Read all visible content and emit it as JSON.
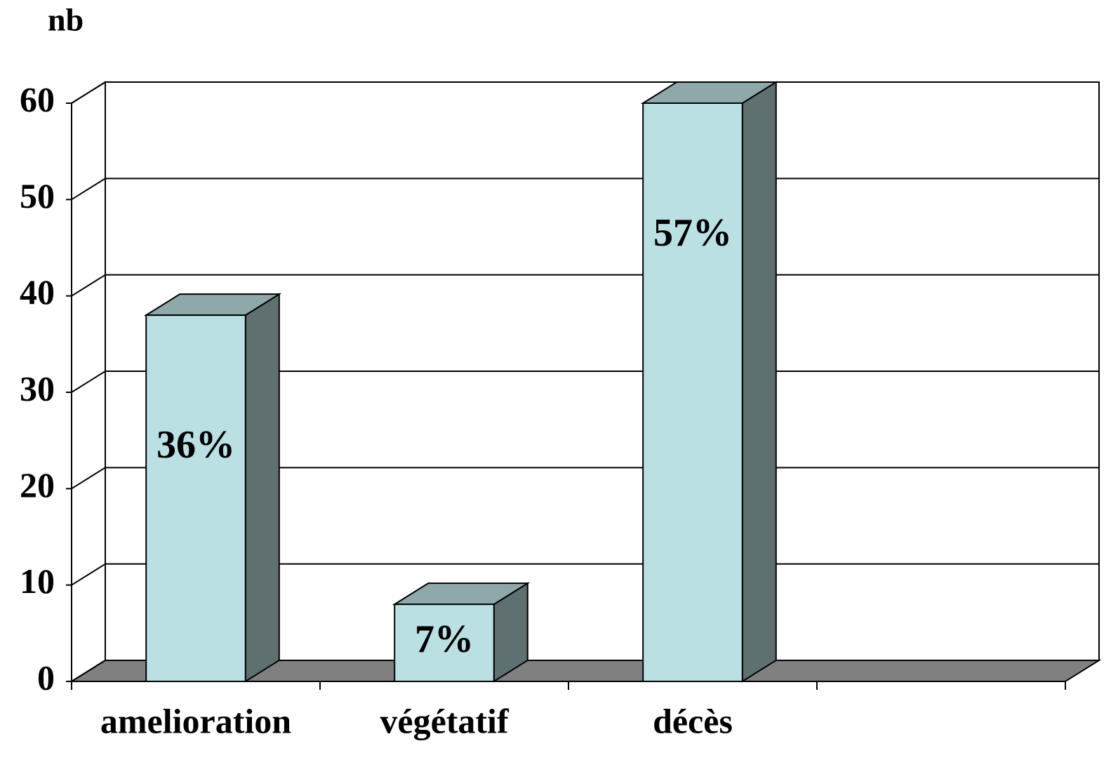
{
  "chart_data": {
    "type": "bar3d",
    "y_label": "nb",
    "categories": [
      "amelioration",
      "végétatif",
      "décès",
      null
    ],
    "values": [
      38,
      8,
      60,
      null
    ],
    "annotations": [
      "36%",
      "7%",
      "57%"
    ],
    "color": "#bae0e4",
    "ylim": [
      0,
      60
    ],
    "yticks": [
      0,
      10,
      20,
      30,
      40,
      50,
      60
    ],
    "grid": true
  }
}
